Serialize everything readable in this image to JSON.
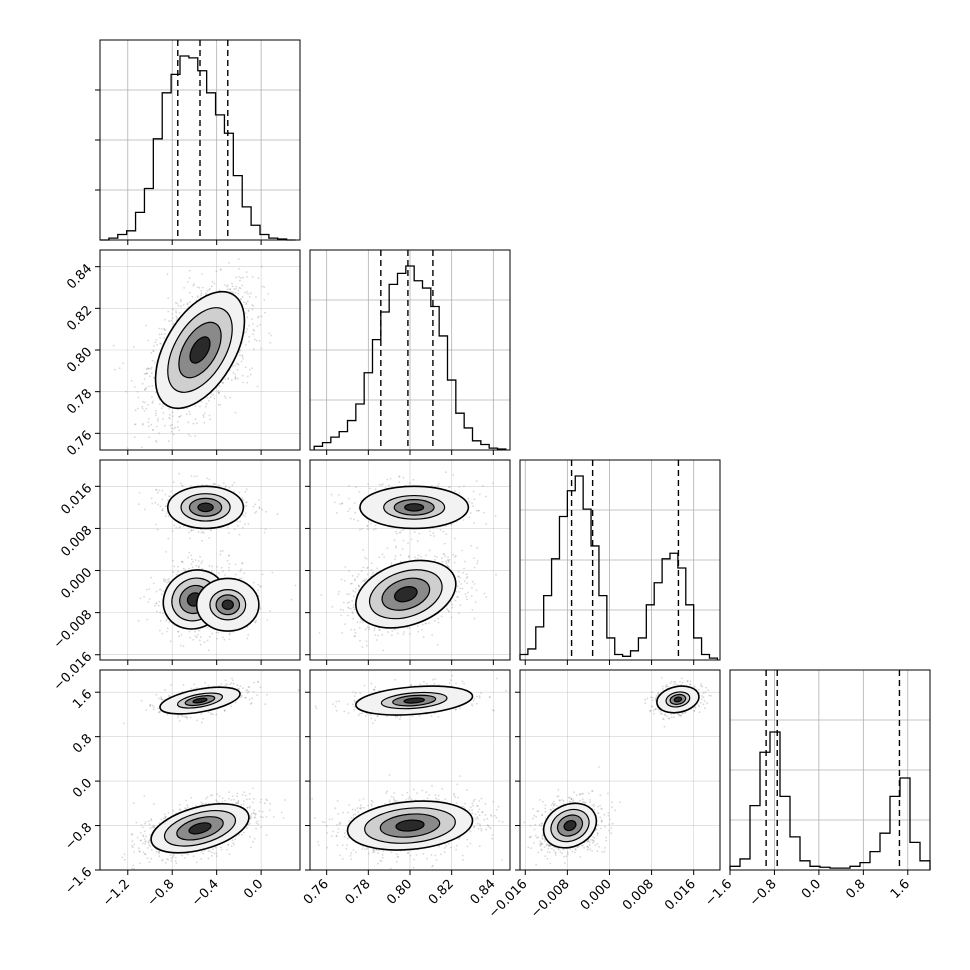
{
  "colors": {
    "axis": "#000000",
    "grid": "#b0b0b0",
    "hist": "#000000",
    "quantile": "#000000",
    "point": "#8f8f8f"
  },
  "chart_data": {
    "type": "corner",
    "grid": true,
    "parameters": [
      {
        "range": [
          -1.45,
          0.35
        ],
        "ticks": [
          -1.2,
          -0.8,
          -0.4,
          0.0
        ],
        "tick_labels": [
          "−1.2",
          "−0.8",
          "−0.4",
          "0.0"
        ]
      },
      {
        "range": [
          0.752,
          0.848
        ],
        "ticks": [
          0.76,
          0.78,
          0.8,
          0.82,
          0.84
        ],
        "tick_labels": [
          "0.76",
          "0.78",
          "0.80",
          "0.82",
          "0.84"
        ]
      },
      {
        "range": [
          -0.017,
          0.021
        ],
        "ticks": [
          -0.016,
          -0.008,
          0.0,
          0.008,
          0.016
        ],
        "tick_labels": [
          "−0.016",
          "−0.008",
          "0.000",
          "0.008",
          "0.016"
        ]
      },
      {
        "range": [
          -1.6,
          2.0
        ],
        "ticks": [
          -1.6,
          -0.8,
          0.0,
          0.8,
          1.6
        ],
        "tick_labels": [
          "−1.6",
          "−0.8",
          "0.0",
          "0.8",
          "1.6"
        ]
      }
    ],
    "histograms": [
      {
        "param": 0,
        "quantiles": [
          -0.75,
          -0.55,
          -0.3
        ],
        "bins": [
          [
            -1.45,
            0
          ],
          [
            -1.37,
            0.01
          ],
          [
            -1.29,
            0.03
          ],
          [
            -1.21,
            0.05
          ],
          [
            -1.13,
            0.15
          ],
          [
            -1.05,
            0.28
          ],
          [
            -0.97,
            0.55
          ],
          [
            -0.89,
            0.8
          ],
          [
            -0.81,
            0.9
          ],
          [
            -0.73,
            1.0
          ],
          [
            -0.65,
            0.99
          ],
          [
            -0.57,
            0.92
          ],
          [
            -0.49,
            0.8
          ],
          [
            -0.41,
            0.68
          ],
          [
            -0.33,
            0.58
          ],
          [
            -0.25,
            0.35
          ],
          [
            -0.17,
            0.18
          ],
          [
            -0.09,
            0.08
          ],
          [
            -0.01,
            0.03
          ],
          [
            0.07,
            0.01
          ],
          [
            0.15,
            0.005
          ],
          [
            0.23,
            0
          ]
        ]
      },
      {
        "param": 1,
        "quantiles": [
          0.786,
          0.799,
          0.811
        ],
        "bins": [
          [
            0.754,
            0.02
          ],
          [
            0.758,
            0.04
          ],
          [
            0.762,
            0.07
          ],
          [
            0.766,
            0.1
          ],
          [
            0.77,
            0.16
          ],
          [
            0.774,
            0.25
          ],
          [
            0.778,
            0.42
          ],
          [
            0.782,
            0.6
          ],
          [
            0.786,
            0.75
          ],
          [
            0.79,
            0.9
          ],
          [
            0.794,
            0.96
          ],
          [
            0.798,
            1.0
          ],
          [
            0.802,
            0.92
          ],
          [
            0.806,
            0.88
          ],
          [
            0.81,
            0.78
          ],
          [
            0.814,
            0.62
          ],
          [
            0.818,
            0.38
          ],
          [
            0.822,
            0.2
          ],
          [
            0.826,
            0.12
          ],
          [
            0.83,
            0.05
          ],
          [
            0.834,
            0.03
          ],
          [
            0.838,
            0.01
          ],
          [
            0.842,
            0.005
          ]
        ]
      },
      {
        "param": 2,
        "quantiles": [
          -0.0072,
          -0.0032,
          0.0131
        ],
        "bins": [
          [
            -0.017,
            0.03
          ],
          [
            -0.0155,
            0.06
          ],
          [
            -0.014,
            0.18
          ],
          [
            -0.0125,
            0.35
          ],
          [
            -0.011,
            0.55
          ],
          [
            -0.0095,
            0.78
          ],
          [
            -0.008,
            0.92
          ],
          [
            -0.0065,
            1.0
          ],
          [
            -0.005,
            0.82
          ],
          [
            -0.0035,
            0.62
          ],
          [
            -0.002,
            0.35
          ],
          [
            -0.0005,
            0.12
          ],
          [
            0.001,
            0.03
          ],
          [
            0.0025,
            0.02
          ],
          [
            0.004,
            0.05
          ],
          [
            0.0055,
            0.12
          ],
          [
            0.007,
            0.3
          ],
          [
            0.0085,
            0.42
          ],
          [
            0.01,
            0.55
          ],
          [
            0.0115,
            0.58
          ],
          [
            0.013,
            0.5
          ],
          [
            0.0145,
            0.3
          ],
          [
            0.016,
            0.12
          ],
          [
            0.0175,
            0.03
          ],
          [
            0.019,
            0.01
          ]
        ]
      },
      {
        "param": 3,
        "quantiles": [
          -0.95,
          -0.75,
          1.45
        ],
        "bins": [
          [
            -1.6,
            0.02
          ],
          [
            -1.42,
            0.06
          ],
          [
            -1.24,
            0.35
          ],
          [
            -1.06,
            0.64
          ],
          [
            -0.88,
            0.75
          ],
          [
            -0.7,
            0.4
          ],
          [
            -0.52,
            0.18
          ],
          [
            -0.34,
            0.05
          ],
          [
            -0.16,
            0.02
          ],
          [
            0.02,
            0.015
          ],
          [
            0.2,
            0.01
          ],
          [
            0.38,
            0.01
          ],
          [
            0.56,
            0.02
          ],
          [
            0.74,
            0.04
          ],
          [
            0.92,
            0.1
          ],
          [
            1.1,
            0.2
          ],
          [
            1.28,
            0.4
          ],
          [
            1.46,
            0.5
          ],
          [
            1.64,
            0.15
          ],
          [
            1.82,
            0.05
          ]
        ]
      }
    ],
    "joint_densities": [
      {
        "x": 0,
        "y": 1,
        "components": [
          {
            "mx": -0.55,
            "my": 0.8,
            "sx": 0.2,
            "sy": 0.014,
            "rho": 0.5,
            "w": 1
          }
        ]
      },
      {
        "x": 0,
        "y": 2,
        "components": [
          {
            "mx": -0.6,
            "my": -0.0055,
            "sx": 0.14,
            "sy": 0.0028,
            "rho": 0.1,
            "w": 0.65
          },
          {
            "mx": -0.3,
            "my": -0.0065,
            "sx": 0.14,
            "sy": 0.0025,
            "rho": 0.0,
            "w": 0.35
          },
          {
            "mx": -0.5,
            "my": 0.012,
            "sx": 0.17,
            "sy": 0.002,
            "rho": 0.0,
            "w": 0.5
          }
        ]
      },
      {
        "x": 1,
        "y": 2,
        "components": [
          {
            "mx": 0.798,
            "my": -0.0045,
            "sx": 0.012,
            "sy": 0.0032,
            "rho": 0.3,
            "w": 1
          },
          {
            "mx": 0.802,
            "my": 0.012,
            "sx": 0.013,
            "sy": 0.002,
            "rho": 0.0,
            "w": 0.5
          }
        ]
      },
      {
        "x": 0,
        "y": 3,
        "components": [
          {
            "mx": -0.55,
            "my": -0.85,
            "sx": 0.22,
            "sy": 0.22,
            "rho": 0.45,
            "w": 1
          },
          {
            "mx": -0.55,
            "my": 1.45,
            "sx": 0.18,
            "sy": 0.12,
            "rho": 0.5,
            "w": 0.5
          }
        ]
      },
      {
        "x": 1,
        "y": 3,
        "components": [
          {
            "mx": 0.8,
            "my": -0.8,
            "sx": 0.015,
            "sy": 0.22,
            "rho": 0.2,
            "w": 1
          },
          {
            "mx": 0.802,
            "my": 1.45,
            "sx": 0.014,
            "sy": 0.13,
            "rho": 0.3,
            "w": 0.5
          }
        ]
      },
      {
        "x": 2,
        "y": 3,
        "components": [
          {
            "mx": -0.0075,
            "my": -0.8,
            "sx": 0.0025,
            "sy": 0.2,
            "rho": 0.2,
            "w": 1
          },
          {
            "mx": 0.013,
            "my": 1.47,
            "sx": 0.002,
            "sy": 0.12,
            "rho": 0.2,
            "w": 0.5
          }
        ]
      }
    ]
  }
}
